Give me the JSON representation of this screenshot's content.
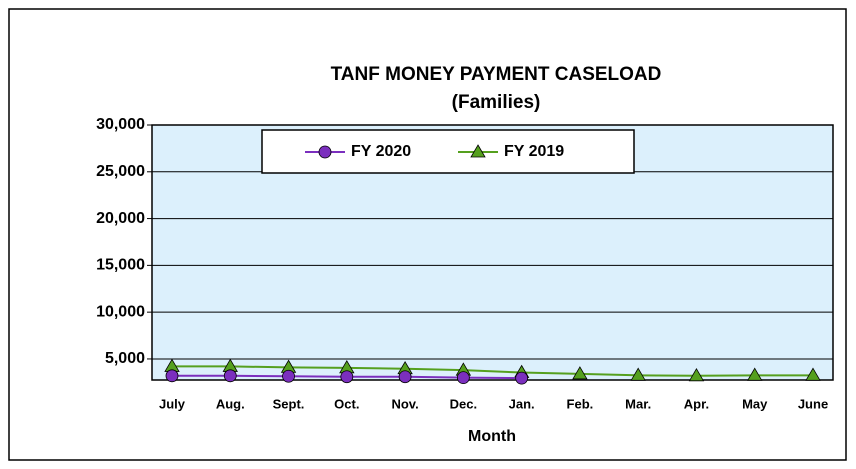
{
  "chart_data": {
    "type": "line",
    "title": "TANF MONEY PAYMENT CASELOAD",
    "subtitle": "(Families)",
    "x_label": "Month",
    "categories": [
      "July",
      "Aug.",
      "Sept.",
      "Oct.",
      "Nov.",
      "Dec.",
      "Jan.",
      "Feb.",
      "Mar.",
      "Apr.",
      "May",
      "June"
    ],
    "series": [
      {
        "name": "FY 2020",
        "color": "#7b2fbe",
        "marker": "circle",
        "values": [
          3200,
          3200,
          3150,
          3100,
          3100,
          3000,
          2950,
          null,
          null,
          null,
          null,
          null
        ]
      },
      {
        "name": "FY 2019",
        "color": "#55a01e",
        "marker": "triangle",
        "values": [
          4200,
          4200,
          4100,
          4050,
          3950,
          3800,
          3550,
          3400,
          3250,
          3200,
          3250,
          3250
        ]
      }
    ],
    "ylim": [
      2750,
      30000
    ],
    "yticks": [
      {
        "value": 5000,
        "label": "5,000"
      },
      {
        "value": 10000,
        "label": "10,000"
      },
      {
        "value": 15000,
        "label": "15,000"
      },
      {
        "value": 20000,
        "label": "20,000"
      },
      {
        "value": 25000,
        "label": "25,000"
      },
      {
        "value": 30000,
        "label": "30,000"
      }
    ],
    "grid": true,
    "legend": "top"
  }
}
